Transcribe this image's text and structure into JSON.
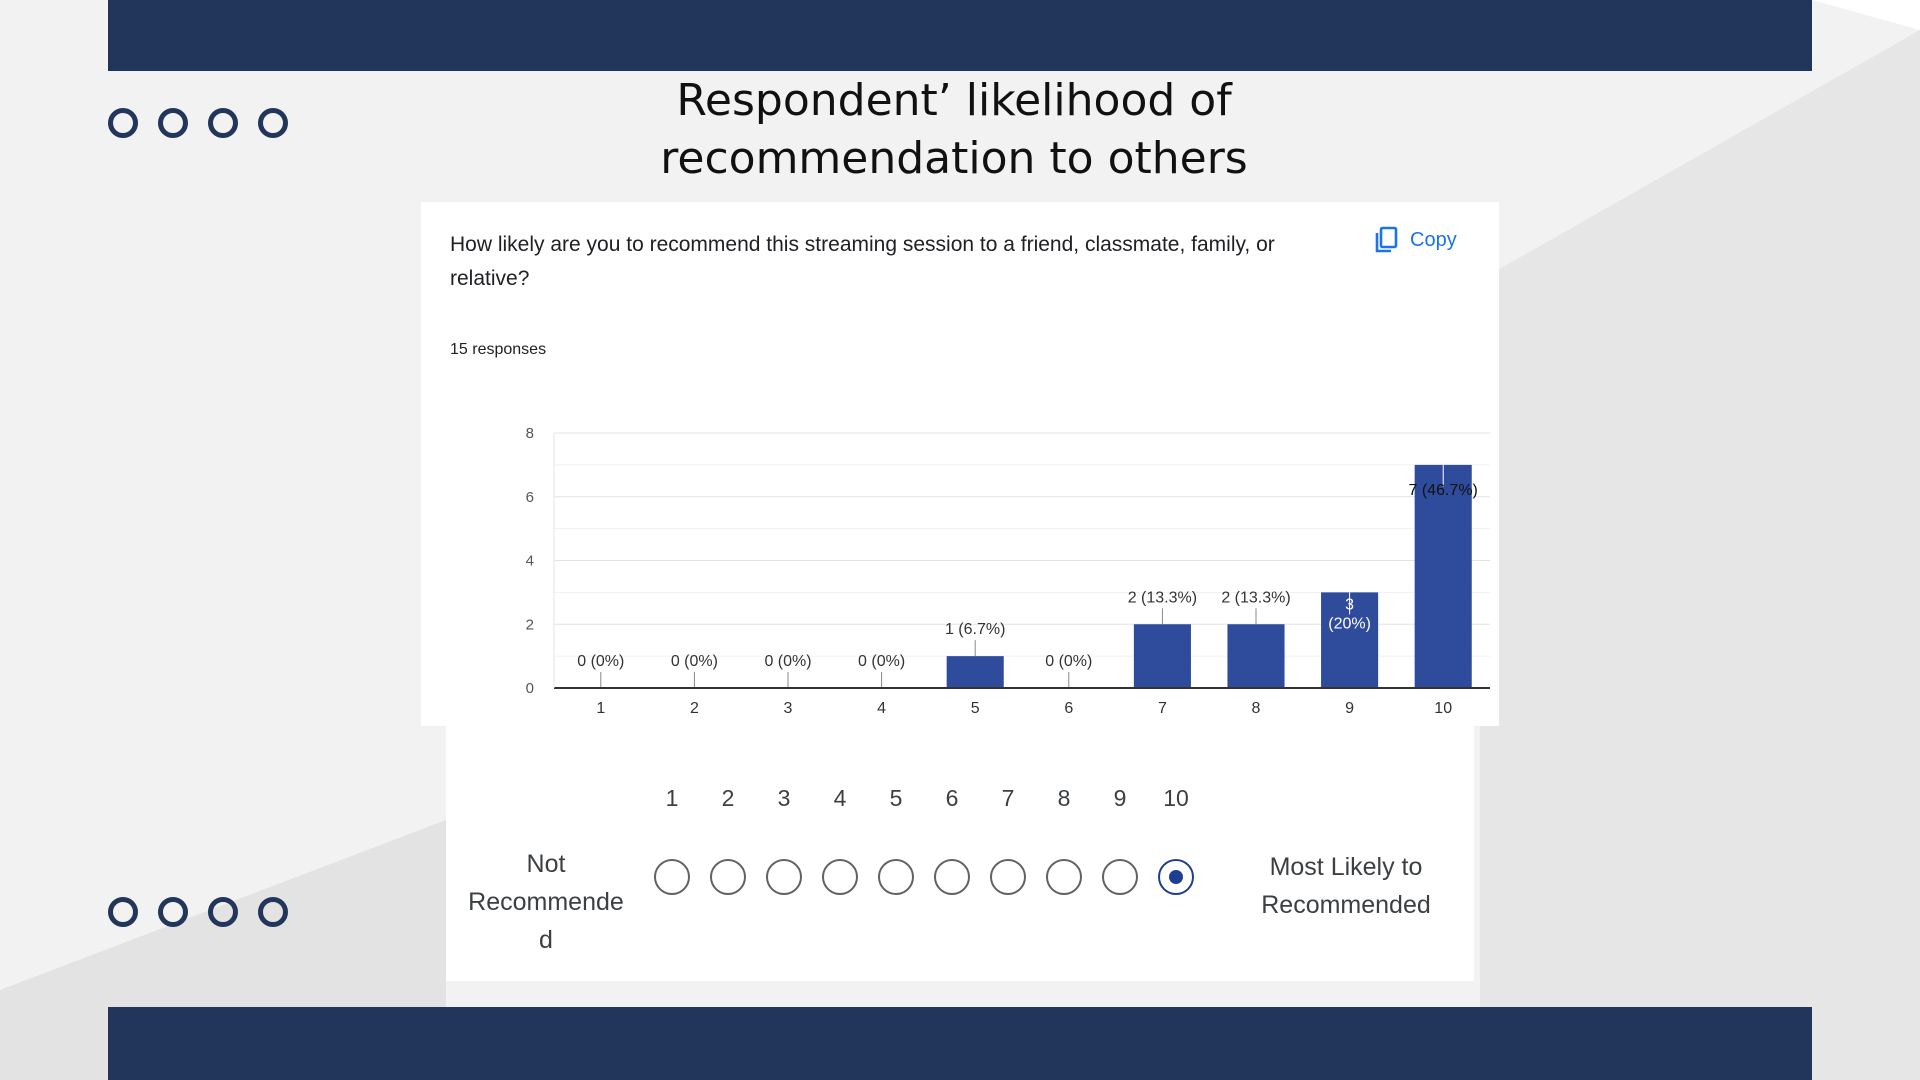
{
  "slide": {
    "title_line1": "Respondent’ likelihood of",
    "title_line2": "recommendation to others"
  },
  "colors": {
    "band": "#22355a",
    "bar": "#2f4b9b",
    "accent": "#1a73e8"
  },
  "form_card": {
    "question": "How likely are you to recommend this streaming session to a friend, classmate, family, or relative?",
    "copy_label": "Copy",
    "copy_icon": "copy-icon",
    "responses": "15 responses"
  },
  "chart_data": {
    "type": "bar",
    "categories": [
      "1",
      "2",
      "3",
      "4",
      "5",
      "6",
      "7",
      "8",
      "9",
      "10"
    ],
    "values": [
      0,
      0,
      0,
      0,
      1,
      0,
      2,
      2,
      3,
      7
    ],
    "data_labels": [
      "0 (0%)",
      "0 (0%)",
      "0 (0%)",
      "0 (0%)",
      "1 (6.7%)",
      "0 (0%)",
      "2 (13.3%)",
      "2 (13.3%)",
      "3 (20%)",
      "7 (46.7%)"
    ],
    "ylim": [
      0,
      8
    ],
    "yticks": [
      "0",
      "2",
      "4",
      "6",
      "8"
    ],
    "grid": true,
    "title": "",
    "xlabel": "",
    "ylabel": ""
  },
  "scale": {
    "numbers": [
      "1",
      "2",
      "3",
      "4",
      "5",
      "6",
      "7",
      "8",
      "9",
      "10"
    ],
    "selected": "10",
    "left_label": "Not Recommended",
    "left_label_lines": [
      "Not",
      "Recommende",
      "d"
    ],
    "right_label": "Most Likely to Recommended"
  }
}
